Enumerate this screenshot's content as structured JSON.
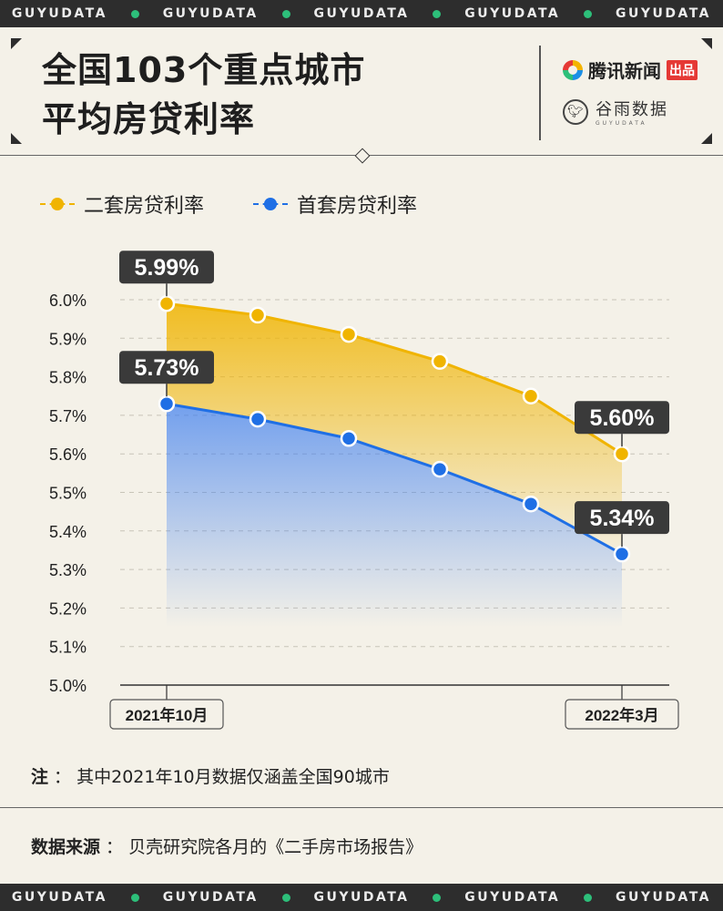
{
  "brand_band": [
    "GUYUDATA",
    "GUYUDATA",
    "GUYUDATA",
    "GUYUDATA",
    "GUYUDATA"
  ],
  "header": {
    "title_line1": "全国103个重点城市",
    "title_line2": "平均房贷利率",
    "logo1_name": "腾讯新闻",
    "logo1_tag": "出品",
    "logo2_name": "谷雨数据",
    "logo2_sub": "GUYUDATA"
  },
  "colors": {
    "second_home": "#f0b400",
    "first_home": "#1f6fe5",
    "callout_bg": "#3a3a3a"
  },
  "chart_data": {
    "type": "area",
    "x": [
      "2021年10月",
      "",
      "",
      "",
      "",
      "2022年3月"
    ],
    "x_tick_labels": [
      "2021年10月",
      "2022年3月"
    ],
    "ylim": [
      5.0,
      6.0
    ],
    "yticks": [
      "6.0%",
      "5.9%",
      "5.8%",
      "5.7%",
      "5.6%",
      "5.5%",
      "5.4%",
      "5.3%",
      "5.2%",
      "5.1%",
      "5.0%"
    ],
    "grid": true,
    "legend_position": "top-left",
    "series": [
      {
        "name": "二套房贷利率",
        "values": [
          5.99,
          5.96,
          5.91,
          5.84,
          5.75,
          5.6
        ],
        "labels": [
          "5.99%",
          "5.60%"
        ]
      },
      {
        "name": "首套房贷利率",
        "values": [
          5.73,
          5.69,
          5.64,
          5.56,
          5.47,
          5.34
        ],
        "labels": [
          "5.73%",
          "5.34%"
        ]
      }
    ]
  },
  "note": {
    "label": "注",
    "text": "其中2021年10月数据仅涵盖全国90城市"
  },
  "source": {
    "label": "数据来源",
    "text": "贝壳研究院各月的《二手房市场报告》"
  }
}
